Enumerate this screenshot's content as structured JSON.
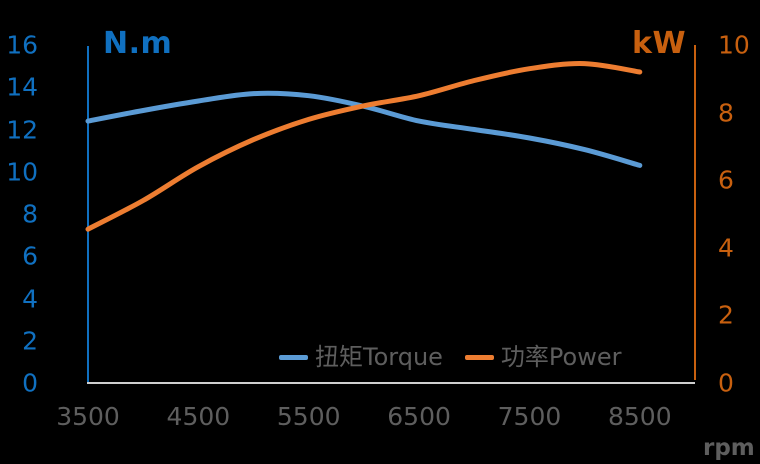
{
  "chart_data": {
    "type": "line",
    "title": "",
    "background": "#000000",
    "grid": false,
    "legend_position": "inside-bottom-center",
    "colors": {
      "torque_line": "#5B9BD5",
      "power_line": "#ED7D31",
      "left_axis": "#1070C0",
      "right_axis": "#C8600F",
      "gray_text": "#5E5E5E",
      "baseline": "#CFCFCF"
    },
    "x_axis": {
      "unit_label": "rpm",
      "ticks": [
        "3500",
        "4500",
        "5500",
        "6500",
        "7500",
        "8500"
      ],
      "tick_values": [
        3500,
        4500,
        5500,
        6500,
        7500,
        8500
      ],
      "range": [
        3500,
        9000
      ]
    },
    "left_axis": {
      "title": "N.m",
      "ticks": [
        "0",
        "2",
        "4",
        "6",
        "8",
        "10",
        "12",
        "14",
        "16"
      ],
      "tick_values": [
        0,
        2,
        4,
        6,
        8,
        10,
        12,
        14,
        16
      ],
      "range": [
        0,
        16
      ]
    },
    "right_axis": {
      "title": "kW",
      "ticks": [
        "0",
        "2",
        "4",
        "6",
        "8",
        "10"
      ],
      "tick_values": [
        0,
        2,
        4,
        6,
        8,
        10
      ],
      "range": [
        0,
        10
      ]
    },
    "x": [
      3500,
      4000,
      4500,
      5000,
      5500,
      6000,
      6500,
      7000,
      7500,
      8000,
      8500
    ],
    "series": [
      {
        "key": "torque",
        "name": "扭矩Torque",
        "axis": "left",
        "unit": "N.m",
        "color": "#5B9BD5",
        "values": [
          12.4,
          12.9,
          13.35,
          13.7,
          13.6,
          13.1,
          12.4,
          12.0,
          11.6,
          11.05,
          10.3
        ]
      },
      {
        "key": "power",
        "name": "功率Power",
        "axis": "right",
        "unit": "kW",
        "color": "#ED7D31",
        "values": [
          4.55,
          5.4,
          6.4,
          7.2,
          7.8,
          8.2,
          8.5,
          8.95,
          9.3,
          9.45,
          9.2
        ]
      }
    ]
  }
}
